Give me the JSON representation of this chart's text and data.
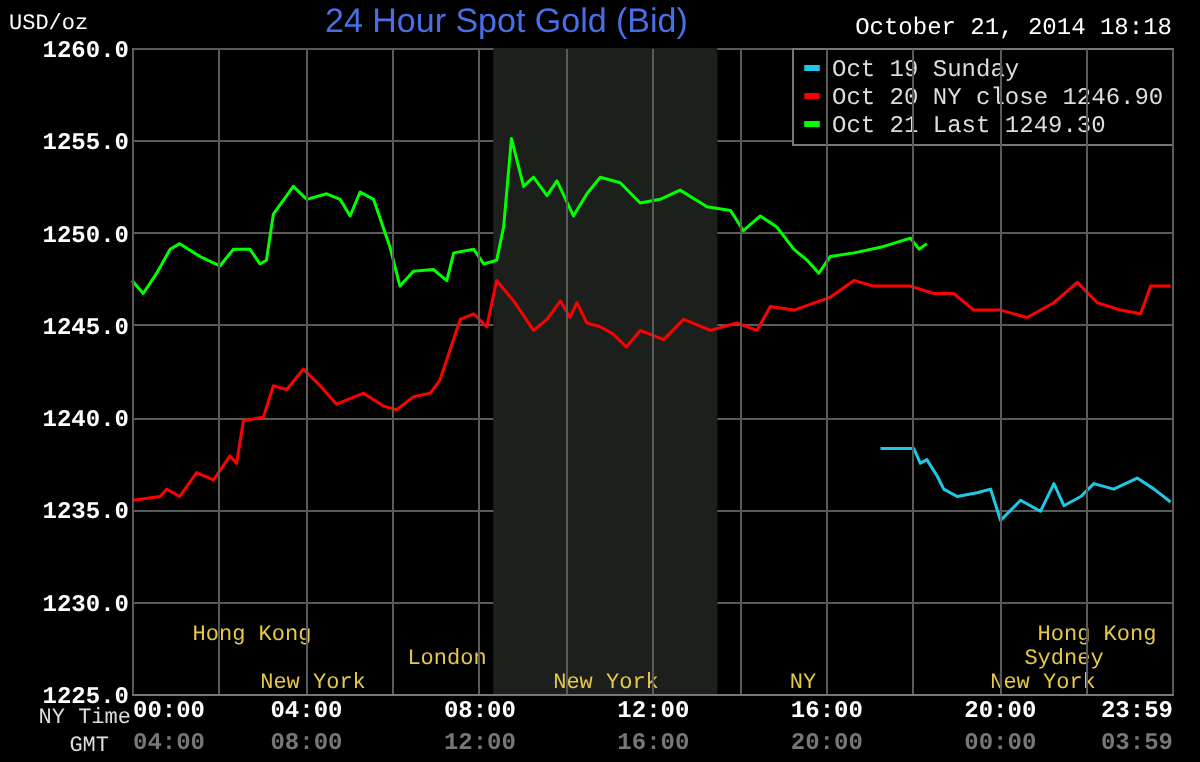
{
  "chart_data": {
    "type": "line",
    "title": "24 Hour Spot Gold (Bid)",
    "ylabel": "USD/oz",
    "xlabel": "NY Time",
    "x2label": "GMT",
    "annotations": [
      "October 21, 2014 18:18",
      "New York",
      "New York",
      "NY",
      "New York",
      "London",
      "Sydney",
      "Hong Kong",
      "Hong Kong"
    ],
    "xlim": [
      0,
      23.983
    ],
    "xticks": [
      {
        "value": 0,
        "label": "00:00"
      },
      {
        "value": 2,
        "label": null
      },
      {
        "value": 4,
        "label": "04:00"
      },
      {
        "value": 6,
        "label": null
      },
      {
        "value": 8,
        "label": "08:00"
      },
      {
        "value": 10,
        "label": null
      },
      {
        "value": 12,
        "label": "12:00"
      },
      {
        "value": 14,
        "label": null
      },
      {
        "value": 16,
        "label": "16:00"
      },
      {
        "value": 18,
        "label": null
      },
      {
        "value": 20,
        "label": "20:00"
      },
      {
        "value": 22,
        "label": null
      },
      {
        "value": 23.983,
        "label": "23:59"
      }
    ],
    "x2lim": [
      "2014-10-21T04:00",
      "2014-10-22T03:59"
    ],
    "x2ticks": [
      {
        "value": "2014-10-21T04:00",
        "label": "04:00"
      },
      {
        "value": "2014-10-21T08:00",
        "label": "08:00"
      },
      {
        "value": "2014-10-21T12:00",
        "label": "12:00"
      },
      {
        "value": "2014-10-21T16:00",
        "label": "16:00"
      },
      {
        "value": "2014-10-21T20:00",
        "label": "20:00"
      },
      {
        "value": "2014-10-22T00:00",
        "label": "00:00"
      },
      {
        "value": "2014-10-22T03:59",
        "label": "03:59"
      }
    ],
    "ylim": [
      1225,
      1260
    ],
    "yticks": [
      {
        "value": 1225,
        "label": "1225.0"
      },
      {
        "value": 1230,
        "label": "1230.0"
      },
      {
        "value": 1235,
        "label": "1235.0"
      },
      {
        "value": 1240,
        "label": "1240.0"
      },
      {
        "value": 1245,
        "label": "1245.0"
      },
      {
        "value": 1250,
        "label": "1250.0"
      },
      {
        "value": 1255,
        "label": "1255.0"
      },
      {
        "value": 1260,
        "label": "1260.0"
      }
    ],
    "grid": true,
    "legend": "top right",
    "line_style": "solid",
    "marker": "none",
    "bands": [
      {
        "axis": "x",
        "from": 8.33,
        "to": 13.5,
        "color": "#1c1f1c"
      }
    ],
    "series": [
      {
        "name": "Oct 19 Sunday",
        "color": "#1ec8e6",
        "x": [
          17.26,
          18.03,
          18.18,
          18.33,
          18.57,
          18.72,
          19.03,
          19.49,
          19.8,
          20.03,
          20.49,
          20.95,
          21.26,
          21.49,
          21.88,
          22.18,
          22.64,
          23.18,
          23.57,
          23.95
        ],
        "values": [
          1238.3,
          1238.3,
          1237.5,
          1237.7,
          1236.8,
          1236.1,
          1235.7,
          1235.9,
          1236.1,
          1234.4,
          1235.5,
          1234.9,
          1236.4,
          1235.2,
          1235.7,
          1236.4,
          1236.1,
          1236.7,
          1236.1,
          1235.4
        ]
      },
      {
        "name": "Oct 20 NY close 1246.90",
        "color": "#ff0000",
        "x": [
          0.03,
          0.65,
          0.8,
          1.1,
          1.49,
          1.88,
          2.26,
          2.41,
          2.57,
          3.03,
          3.26,
          3.57,
          3.95,
          4.34,
          4.72,
          5.34,
          5.8,
          6.1,
          6.49,
          6.88,
          7.1,
          7.57,
          7.88,
          8.18,
          8.41,
          8.8,
          9.26,
          9.57,
          9.88,
          10.1,
          10.26,
          10.49,
          10.8,
          11.1,
          11.4,
          11.72,
          12.26,
          12.72,
          13.34,
          13.95,
          14.41,
          14.72,
          15.26,
          15.87,
          16.1,
          16.65,
          17.1,
          17.95,
          18.49,
          18.95,
          19.41,
          20.03,
          20.64,
          21.26,
          21.8,
          22.26,
          22.8,
          23.26,
          23.49,
          23.95
        ],
        "values": [
          1235.5,
          1235.7,
          1236.1,
          1235.7,
          1237.0,
          1236.6,
          1237.9,
          1237.5,
          1239.8,
          1240.0,
          1241.7,
          1241.5,
          1242.6,
          1241.7,
          1240.7,
          1241.3,
          1240.6,
          1240.4,
          1241.1,
          1241.3,
          1242.0,
          1245.3,
          1245.6,
          1244.9,
          1247.4,
          1246.3,
          1244.7,
          1245.3,
          1246.3,
          1245.4,
          1246.2,
          1245.1,
          1244.9,
          1244.5,
          1243.8,
          1244.7,
          1244.2,
          1245.3,
          1244.7,
          1245.1,
          1244.7,
          1246.0,
          1245.8,
          1246.3,
          1246.5,
          1247.4,
          1247.1,
          1247.1,
          1246.7,
          1246.7,
          1245.8,
          1245.8,
          1245.4,
          1246.2,
          1247.3,
          1246.2,
          1245.8,
          1245.6,
          1247.1,
          1247.1
        ]
      },
      {
        "name": "Oct 21 Last 1249.30",
        "color": "#00ff00",
        "x": [
          0,
          0.26,
          0.57,
          0.88,
          1.1,
          1.57,
          2.03,
          2.34,
          2.72,
          2.95,
          3.1,
          3.26,
          3.72,
          4.03,
          4.49,
          4.8,
          5.03,
          5.26,
          5.57,
          5.95,
          6.18,
          6.49,
          6.95,
          7.26,
          7.42,
          7.88,
          8.11,
          8.41,
          8.57,
          8.75,
          9.03,
          9.26,
          9.57,
          9.8,
          10.18,
          10.49,
          10.8,
          11.26,
          11.72,
          12.18,
          12.64,
          13.26,
          13.8,
          14.1,
          14.49,
          14.87,
          15.26,
          15.57,
          15.84,
          16.1,
          16.65,
          17.26,
          17.95,
          18.15,
          18.33
        ],
        "values": [
          1247.4,
          1246.7,
          1247.8,
          1249.1,
          1249.4,
          1248.7,
          1248.2,
          1249.1,
          1249.1,
          1248.3,
          1248.5,
          1251.0,
          1252.5,
          1251.8,
          1252.1,
          1251.8,
          1250.9,
          1252.2,
          1251.8,
          1249.2,
          1247.1,
          1247.9,
          1248.0,
          1247.4,
          1248.9,
          1249.1,
          1248.3,
          1248.5,
          1250.3,
          1255.1,
          1252.5,
          1253.0,
          1252.0,
          1252.8,
          1250.9,
          1252.1,
          1253.0,
          1252.7,
          1251.6,
          1251.8,
          1252.3,
          1251.4,
          1251.2,
          1250.1,
          1250.9,
          1250.3,
          1249.1,
          1248.5,
          1247.8,
          1248.7,
          1248.9,
          1249.2,
          1249.7,
          1249.1,
          1249.4
        ]
      }
    ]
  }
}
